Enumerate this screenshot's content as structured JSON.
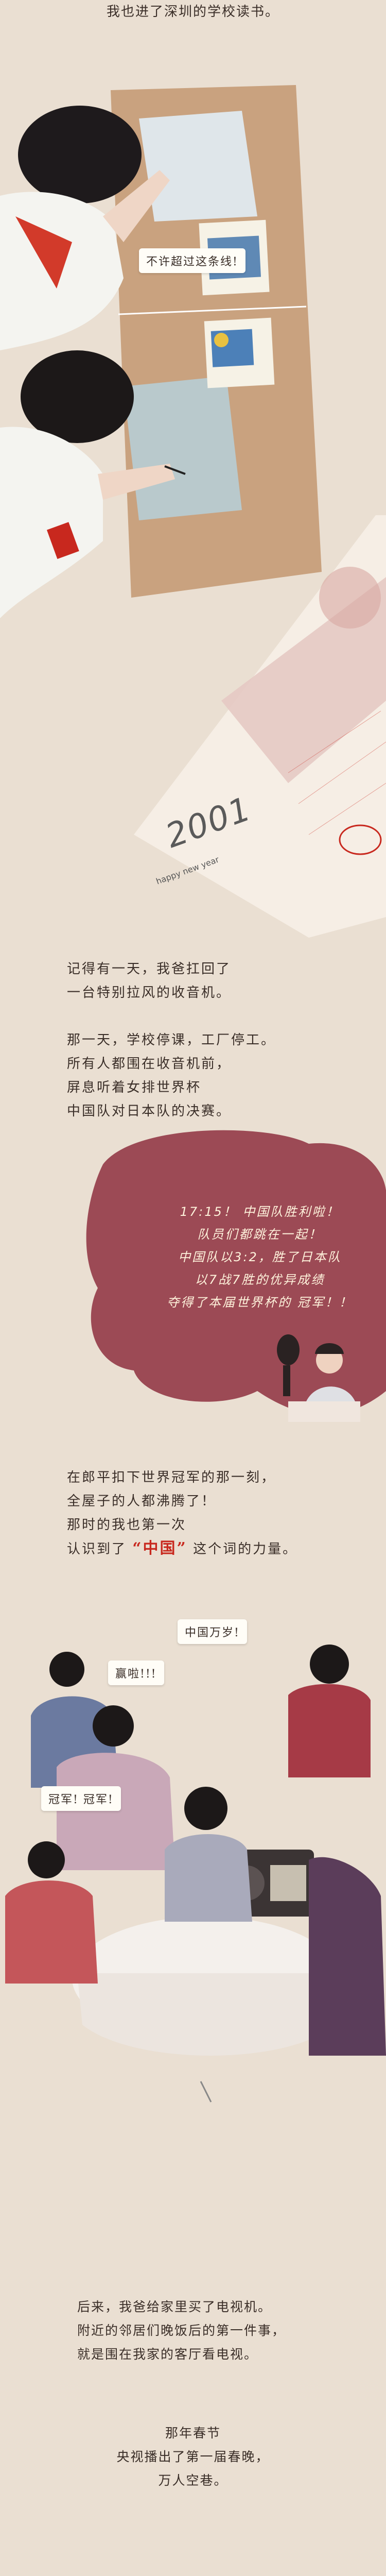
{
  "scene1": {
    "caption": "我也进了深圳的学校读书。",
    "speech": "不许超过这条线!"
  },
  "calendar": {
    "script": "2001",
    "caption": "happy new year"
  },
  "scene2": {
    "lines": [
      "记得有一天，我爸扛回了",
      "一台特别拉风的收音机。",
      "",
      "那一天，学校停课，工厂停工。",
      "所有人都围在收音机前，",
      "屏息听着女排世界杯",
      "中国队对日本队的决赛。"
    ]
  },
  "radio_bubble": {
    "lines": [
      "17:15！ 中国队胜利啦！",
      "队员们都跳在一起！",
      "中国队以3:2，胜了日本队",
      "以7战7胜的优异成绩",
      "夺得了本届世界杯的 冠军！！"
    ]
  },
  "scene3": {
    "line1": "在郎平扣下世界冠军的那一刻，",
    "line2": "全屋子的人都沸腾了！",
    "line3": "那时的我也第一次",
    "line4_pre": "认识到了",
    "line4_highlight": "“中国”",
    "line4_post": "这个词的力量。"
  },
  "crowd": {
    "shout_china": "中国万岁!",
    "shout_win": "赢啦!!!",
    "shout_champion": "冠军! 冠军!"
  },
  "scene4": {
    "lines": [
      "后来，我爸给家里买了电视机。",
      "附近的邻居们晚饭后的第一件事，",
      "就是围在我家的客厅看电视。"
    ]
  },
  "scene5": {
    "lines": [
      "那年春节",
      "央视播出了第一届春晚，",
      "万人空巷。"
    ]
  }
}
